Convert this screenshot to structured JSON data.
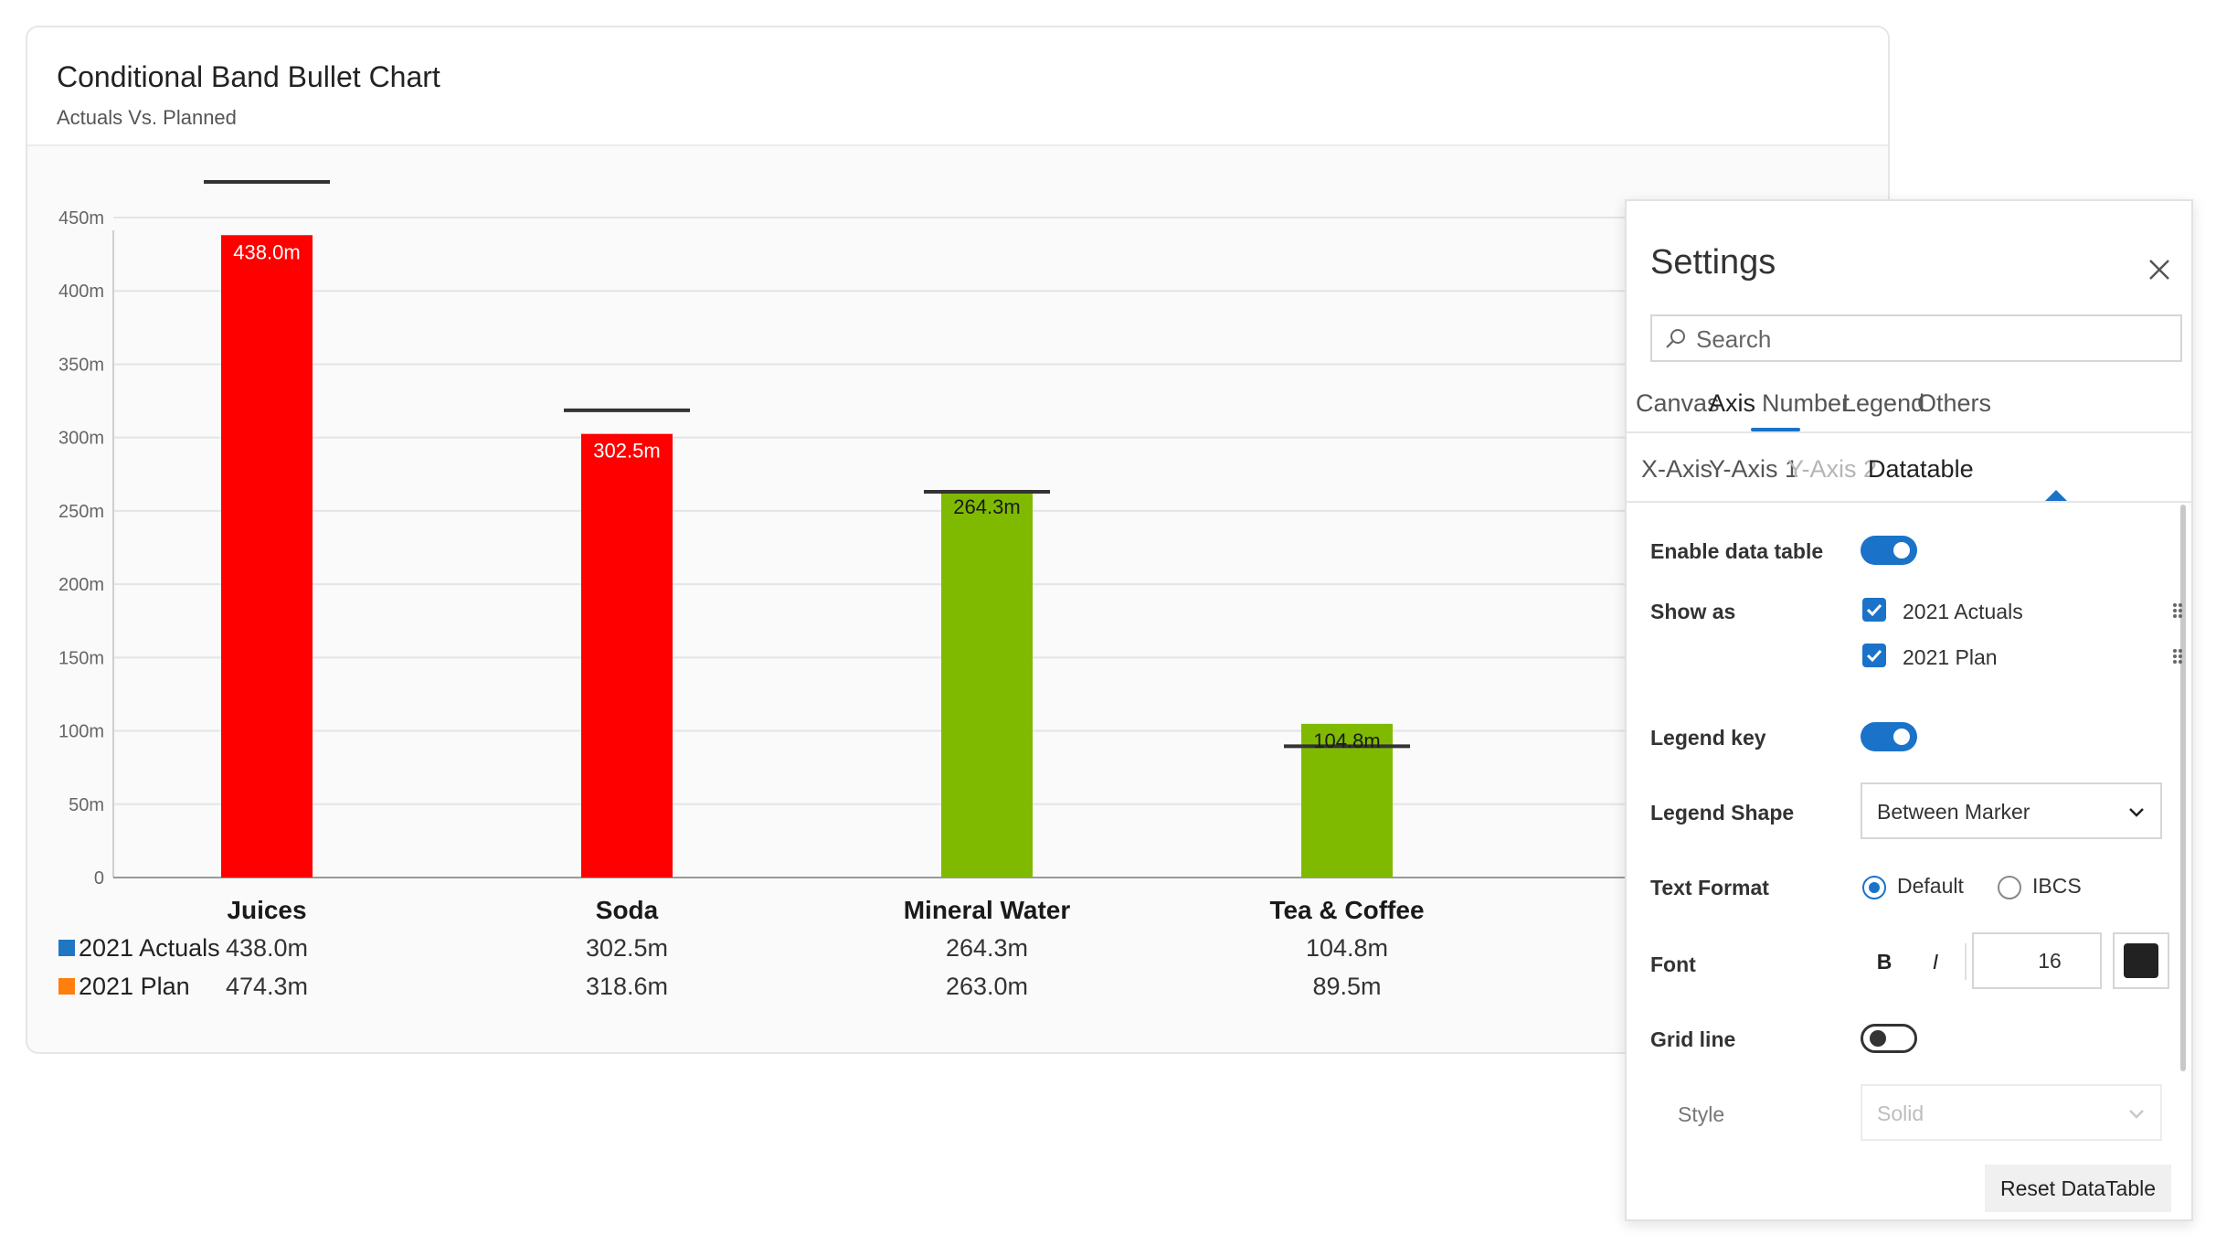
{
  "card": {
    "title": "Conditional Band Bullet Chart",
    "subtitle": "Actuals Vs. Planned"
  },
  "colors": {
    "over_plan_bar": "#ff0000",
    "under_plan_bar": "#7fba00",
    "plan_marker": "#333333",
    "legend_actuals": "#1f77c4",
    "legend_plan": "#ff7f0e",
    "accent": "#1a73c8"
  },
  "chart_data": {
    "type": "bar",
    "categories": [
      "Juices",
      "Soda",
      "Mineral Water",
      "Tea & Coffee"
    ],
    "series": [
      {
        "name": "2021 Actuals",
        "values": [
          438.0,
          302.5,
          264.3,
          104.8
        ]
      },
      {
        "name": "2021 Plan",
        "values": [
          474.3,
          318.6,
          263.0,
          89.5
        ]
      }
    ],
    "bar_labels": [
      "438.0m",
      "302.5m",
      "264.3m",
      "104.8m"
    ],
    "y_ticks": [
      "0",
      "50m",
      "100m",
      "150m",
      "200m",
      "250m",
      "300m",
      "350m",
      "400m",
      "450m"
    ],
    "ylim": [
      0,
      475
    ],
    "grid": true,
    "data_table": {
      "rows": [
        {
          "label": "2021 Actuals",
          "cells": [
            "438.0m",
            "302.5m",
            "264.3m",
            "104.8m"
          ]
        },
        {
          "label": "2021 Plan",
          "cells": [
            "474.3m",
            "318.6m",
            "263.0m",
            "89.5m"
          ]
        }
      ]
    }
  },
  "settings": {
    "title": "Settings",
    "search_placeholder": "Search",
    "tabs": [
      "Canvas",
      "Axis",
      "Number",
      "Legend",
      "Others"
    ],
    "active_tab": "Axis",
    "subtabs": [
      "X-Axis",
      "Y-Axis 1",
      "Y-Axis 2",
      "Datatable"
    ],
    "active_subtab": "Datatable",
    "enable_data_table_label": "Enable data table",
    "enable_data_table": true,
    "show_as_label": "Show as",
    "show_as_items": [
      {
        "label": "2021 Actuals",
        "checked": true
      },
      {
        "label": "2021 Plan",
        "checked": true
      }
    ],
    "legend_key_label": "Legend key",
    "legend_key": true,
    "legend_shape_label": "Legend Shape",
    "legend_shape_value": "Between Marker",
    "text_format_label": "Text Format",
    "text_format_options": [
      "Default",
      "IBCS"
    ],
    "text_format_selected": "Default",
    "font_label": "Font",
    "bold_glyph": "B",
    "italic_glyph": "I",
    "font_size": "16",
    "font_color": "#222222",
    "grid_line_label": "Grid line",
    "grid_line": false,
    "style_label": "Style",
    "style_value": "Solid",
    "reset_label": "Reset DataTable"
  }
}
